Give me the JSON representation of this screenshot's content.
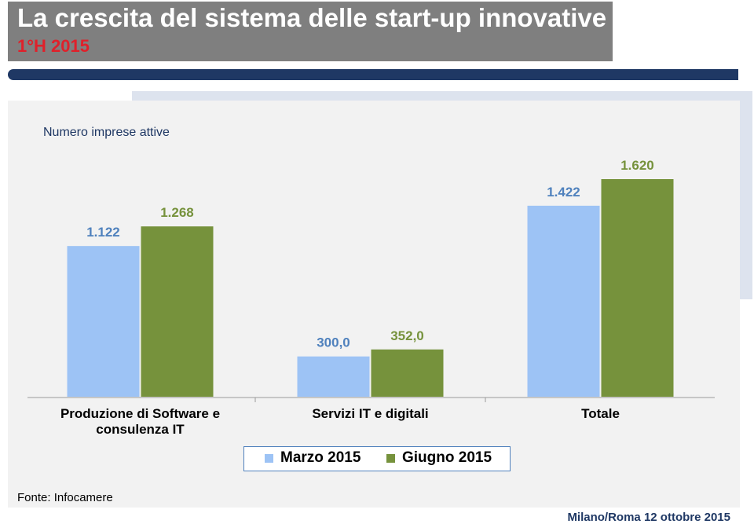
{
  "header": {
    "title": "La crescita del sistema delle start-up innovative",
    "subtitle": "1°H 2015"
  },
  "chart_data": {
    "type": "bar",
    "title": "Numero imprese attive",
    "categories": [
      "Produzione di Software e consulenza IT",
      "Servizi IT e digitali",
      "Totale"
    ],
    "series": [
      {
        "name": "Marzo 2015",
        "color": "#9dc3f5",
        "values": [
          1122,
          300,
          1422
        ],
        "value_labels": [
          "1.122",
          "300,0",
          "1.422"
        ]
      },
      {
        "name": "Giugno 2015",
        "color": "#76923c",
        "values": [
          1268,
          352,
          1620
        ],
        "value_labels": [
          "1.268",
          "352,0",
          "1.620"
        ]
      }
    ]
  },
  "footer": {
    "source": "Fonte: Infocamere",
    "place_date": "Milano/Roma 12 ottobre 2015"
  }
}
